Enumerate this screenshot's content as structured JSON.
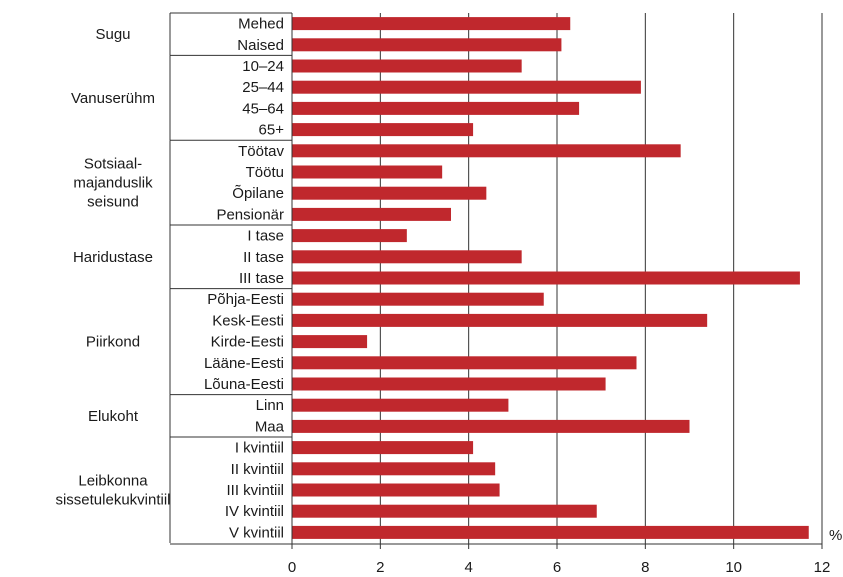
{
  "chart_data": {
    "type": "bar",
    "orientation": "horizontal",
    "unit_label": "%",
    "xlim": [
      0,
      12
    ],
    "xticks": [
      0,
      2,
      4,
      6,
      8,
      10,
      12
    ],
    "grid": true,
    "bar_color": "#c0282d",
    "groups": [
      {
        "name": "Sugu",
        "categories": [
          "Mehed",
          "Naised"
        ],
        "values": [
          6.3,
          6.1
        ]
      },
      {
        "name": "Vanuserühm",
        "categories": [
          "10–24",
          "25–44",
          "45–64",
          "65+"
        ],
        "values": [
          5.2,
          7.9,
          6.5,
          4.1
        ]
      },
      {
        "name": "Sotsiaal- majanduslik seisund",
        "name_lines": [
          "Sotsiaal-",
          "majanduslik",
          "seisund"
        ],
        "categories": [
          "Töötav",
          "Töötu",
          "Õpilane",
          "Pensionär"
        ],
        "values": [
          8.8,
          3.4,
          4.4,
          3.6
        ]
      },
      {
        "name": "Haridustase",
        "categories": [
          "I tase",
          "II tase",
          "III tase"
        ],
        "values": [
          2.6,
          5.2,
          11.5
        ]
      },
      {
        "name": "Piirkond",
        "categories": [
          "Põhja-Eesti",
          "Kesk-Eesti",
          "Kirde-Eesti",
          "Lääne-Eesti",
          "Lõuna-Eesti"
        ],
        "values": [
          5.7,
          9.4,
          1.7,
          7.8,
          7.1
        ]
      },
      {
        "name": "Elukoht",
        "categories": [
          "Linn",
          "Maa"
        ],
        "values": [
          4.9,
          9.0
        ]
      },
      {
        "name": "Leibkonna sissetulekukvintiil",
        "name_lines": [
          "Leibkonna",
          "sissetulekukvintiil"
        ],
        "categories": [
          "I kvintiil",
          "II kvintiil",
          "III kvintiil",
          "IV kvintiil",
          "V kvintiil"
        ],
        "values": [
          4.1,
          4.6,
          4.7,
          6.9,
          11.7
        ]
      }
    ]
  }
}
